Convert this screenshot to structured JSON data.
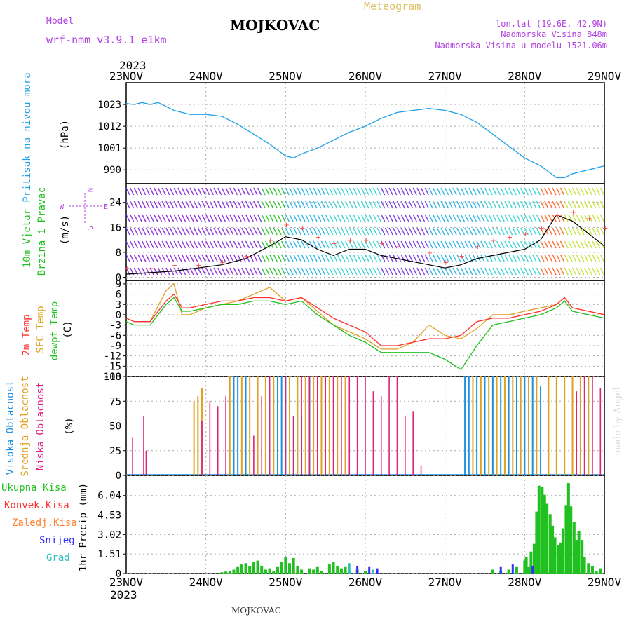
{
  "header": {
    "model_label": "Model",
    "model_name": "wrf-nmm_v3.9.1  e1km",
    "title": "MOJKOVAC",
    "subtitle": "Meteogram",
    "lonlat": "lon,lat (19.6E, 42.9N)",
    "alt_station": "Nadmorska Visina 848m",
    "alt_model": "Nadmorska Visina u modelu 1521.06m",
    "year_top": "2023",
    "year_bottom": "2023",
    "footer_title": "MOJKOVAC",
    "watermark": "made by Angel"
  },
  "x_axis": {
    "labels": [
      "23NOV",
      "24NOV",
      "25NOV",
      "26NOV",
      "27NOV",
      "28NOV",
      "29NOV"
    ]
  },
  "panel_labels": {
    "pressure": {
      "name": "Pritisak na nivou mora",
      "unit": "(hPa)"
    },
    "wind": {
      "name1": "10m Vjetar",
      "name2": "Brzina i Pravac",
      "unit": "(m/s)",
      "compass_n": "N",
      "compass_s": "S",
      "compass_e": "E",
      "compass_w": "W"
    },
    "temp": {
      "t2m": "2m Temp",
      "sfc": "SFC Temp",
      "dew": "dewpt Temp",
      "unit": "(C)"
    },
    "cloud": {
      "high": "Visoka Oblacnost",
      "mid": "Srednja Oblacnost",
      "low": "Niska Oblacnost",
      "unit": "(%)"
    },
    "precip": {
      "total": "Ukupna Kisa",
      "conv": "Konvek.Kisa",
      "frozen": "Zaledj.Kisa",
      "snow": "Snijeg",
      "grad": "Grad",
      "unit": "1hr Precip (mm)"
    }
  },
  "colors": {
    "pressure": "#1ea0e6",
    "wind_line": "#000000",
    "gust": "#ff4040",
    "t2m": "#ff3030",
    "sfc": "#e0a020",
    "dew": "#20c020",
    "cloud_high": "#1e90e0",
    "cloud_mid": "#e0a020",
    "cloud_low": "#e0207a",
    "precip_total": "#20c020",
    "precip_conv": "#ff3030",
    "precip_frozen": "#ff8030",
    "precip_snow": "#3030ff",
    "precip_grad": "#30c0c0",
    "model_text": "#b040e0",
    "subtitle_text": "#e0c060"
  },
  "chart_data": [
    {
      "type": "line",
      "name": "pressure",
      "yticks": [
        "1023",
        "1012",
        "1001",
        "990"
      ],
      "ylim": [
        983,
        1034
      ],
      "x": [
        0,
        0.1,
        0.2,
        0.3,
        0.4,
        0.5,
        0.6,
        0.7,
        0.8,
        0.9,
        1.0,
        1.2,
        1.4,
        1.6,
        1.8,
        2.0,
        2.1,
        2.2,
        2.4,
        2.6,
        2.8,
        3.0,
        3.2,
        3.4,
        3.6,
        3.8,
        4.0,
        4.2,
        4.4,
        4.6,
        4.8,
        5.0,
        5.2,
        5.4,
        5.5,
        5.6,
        5.8,
        6.0
      ],
      "values": [
        1023.5,
        1023,
        1024,
        1023,
        1024,
        1022,
        1020,
        1019,
        1018,
        1018,
        1018,
        1017,
        1013,
        1008,
        1003,
        997,
        996,
        998,
        1001,
        1005,
        1009,
        1012,
        1016,
        1019,
        1020,
        1021,
        1020,
        1018,
        1014,
        1008,
        1002,
        996,
        992,
        986,
        986,
        988,
        990,
        992
      ]
    },
    {
      "type": "line",
      "name": "wind",
      "yticks": [
        "24",
        "16",
        "8",
        "0"
      ],
      "ylim": [
        -1,
        30
      ],
      "x": [
        0,
        0.3,
        0.6,
        0.9,
        1.2,
        1.5,
        1.8,
        2.0,
        2.2,
        2.4,
        2.6,
        2.8,
        3.0,
        3.2,
        3.4,
        3.6,
        3.8,
        4.0,
        4.2,
        4.4,
        4.6,
        4.8,
        5.0,
        5.2,
        5.4,
        5.6,
        5.8,
        6.0
      ],
      "values": [
        1,
        1.5,
        2,
        3,
        4,
        6,
        10,
        13,
        12,
        9,
        7,
        9,
        9,
        7,
        6,
        5,
        4,
        3,
        4,
        6,
        7,
        8,
        9,
        12,
        20,
        18,
        14,
        10
      ],
      "gust": [
        3,
        3,
        4,
        4,
        5,
        7,
        12,
        17,
        16,
        13,
        11,
        12,
        12,
        11,
        10,
        9,
        8,
        5,
        7,
        10,
        12,
        13,
        14,
        16,
        20,
        21,
        19,
        16
      ]
    },
    {
      "type": "line",
      "name": "temperature",
      "yticks": [
        "9",
        "6",
        "3",
        "0",
        "-3",
        "-6",
        "-9",
        "-12",
        "-15",
        "-18"
      ],
      "ylim": [
        -18,
        10
      ],
      "x": [
        0,
        0.1,
        0.2,
        0.3,
        0.5,
        0.6,
        0.7,
        0.8,
        1.0,
        1.2,
        1.4,
        1.6,
        1.8,
        2.0,
        2.2,
        2.4,
        2.6,
        2.8,
        3.0,
        3.2,
        3.4,
        3.6,
        3.8,
        4.0,
        4.2,
        4.4,
        4.6,
        4.8,
        5.0,
        5.2,
        5.4,
        5.5,
        5.6,
        5.8,
        6.0
      ],
      "t2m": [
        -1,
        -2,
        -2,
        -2,
        4,
        6,
        2,
        2,
        3,
        4,
        4,
        5,
        5,
        4,
        5,
        2,
        -1,
        -3,
        -5,
        -9,
        -9,
        -8,
        -7,
        -7,
        -6,
        -2,
        -1,
        -1,
        0,
        1,
        3,
        5,
        2,
        1,
        0
      ],
      "sfc": [
        -1,
        -2,
        -2,
        -2,
        7,
        9,
        0,
        0,
        2,
        3,
        4,
        6,
        8,
        4,
        5,
        1,
        -3,
        -5,
        -7,
        -10,
        -10,
        -8,
        -3,
        -6,
        -7,
        -4,
        0,
        0,
        1,
        2,
        3,
        5,
        2,
        1,
        0
      ],
      "dew": [
        -2,
        -3,
        -3,
        -3,
        3,
        5,
        1,
        1,
        2,
        3,
        3,
        4,
        4,
        3,
        4,
        0,
        -3,
        -6,
        -8,
        -11,
        -11,
        -11,
        -11,
        -13,
        -16,
        -9,
        -3,
        -2,
        -1,
        0,
        2,
        4,
        1,
        0,
        -1
      ]
    },
    {
      "type": "bar",
      "name": "cloud",
      "yticks": [
        "100",
        "75",
        "50",
        "25",
        "0"
      ],
      "ylim": [
        0,
        100
      ],
      "high_bars": [
        [
          1.35,
          100
        ],
        [
          1.4,
          100
        ],
        [
          1.5,
          100
        ],
        [
          1.9,
          100
        ],
        [
          1.95,
          100
        ],
        [
          2.0,
          100
        ],
        [
          2.1,
          60
        ],
        [
          2.2,
          60
        ],
        [
          2.3,
          100
        ],
        [
          4.25,
          100
        ],
        [
          4.3,
          100
        ],
        [
          4.4,
          100
        ],
        [
          4.5,
          100
        ],
        [
          4.6,
          100
        ],
        [
          4.7,
          100
        ],
        [
          4.8,
          100
        ],
        [
          4.9,
          100
        ],
        [
          5.0,
          100
        ],
        [
          5.1,
          100
        ],
        [
          5.2,
          90
        ]
      ],
      "mid_bars": [
        [
          0.85,
          75
        ],
        [
          0.9,
          80
        ],
        [
          0.95,
          88
        ],
        [
          1.3,
          100
        ],
        [
          1.45,
          100
        ],
        [
          1.55,
          100
        ],
        [
          1.65,
          100
        ],
        [
          1.75,
          100
        ],
        [
          1.85,
          100
        ],
        [
          2.05,
          100
        ],
        [
          2.15,
          100
        ],
        [
          2.25,
          100
        ],
        [
          2.35,
          100
        ],
        [
          2.45,
          100
        ],
        [
          2.55,
          100
        ],
        [
          2.65,
          100
        ],
        [
          2.75,
          100
        ],
        [
          4.35,
          100
        ],
        [
          4.45,
          100
        ],
        [
          4.55,
          100
        ],
        [
          4.65,
          100
        ],
        [
          4.75,
          100
        ],
        [
          4.85,
          100
        ],
        [
          4.95,
          100
        ],
        [
          5.05,
          100
        ],
        [
          5.15,
          100
        ],
        [
          5.3,
          100
        ],
        [
          5.4,
          100
        ],
        [
          5.5,
          100
        ],
        [
          5.6,
          100
        ],
        [
          5.7,
          100
        ],
        [
          5.8,
          100
        ]
      ],
      "low_bars": [
        [
          0.08,
          38
        ],
        [
          0.22,
          60
        ],
        [
          0.25,
          25
        ],
        [
          0.95,
          55
        ],
        [
          1.05,
          75
        ],
        [
          1.15,
          70
        ],
        [
          1.25,
          80
        ],
        [
          1.6,
          40
        ],
        [
          1.7,
          80
        ],
        [
          1.8,
          100
        ],
        [
          2.0,
          100
        ],
        [
          2.1,
          60
        ],
        [
          2.2,
          100
        ],
        [
          2.3,
          100
        ],
        [
          2.4,
          100
        ],
        [
          2.5,
          100
        ],
        [
          2.6,
          100
        ],
        [
          2.7,
          100
        ],
        [
          2.8,
          100
        ],
        [
          2.9,
          100
        ],
        [
          3.0,
          100
        ],
        [
          3.1,
          85
        ],
        [
          3.2,
          80
        ],
        [
          3.3,
          100
        ],
        [
          3.4,
          100
        ],
        [
          3.5,
          60
        ],
        [
          3.6,
          65
        ],
        [
          3.7,
          10
        ],
        [
          5.65,
          85
        ],
        [
          5.75,
          100
        ],
        [
          5.85,
          100
        ],
        [
          5.95,
          88
        ]
      ]
    },
    {
      "type": "bar",
      "name": "precipitation",
      "yticks": [
        "6.04",
        "4.53",
        "3.02",
        "1.51",
        "0"
      ],
      "ylim": [
        0,
        7.6
      ],
      "total_bars": [
        [
          1.2,
          0.1
        ],
        [
          1.25,
          0.15
        ],
        [
          1.3,
          0.2
        ],
        [
          1.35,
          0.3
        ],
        [
          1.4,
          0.5
        ],
        [
          1.45,
          0.7
        ],
        [
          1.5,
          0.8
        ],
        [
          1.55,
          0.6
        ],
        [
          1.6,
          0.9
        ],
        [
          1.65,
          1.0
        ],
        [
          1.7,
          0.6
        ],
        [
          1.75,
          0.3
        ],
        [
          1.8,
          0.4
        ],
        [
          1.85,
          0.2
        ],
        [
          1.9,
          0.5
        ],
        [
          1.95,
          0.9
        ],
        [
          2.0,
          1.3
        ],
        [
          2.05,
          0.8
        ],
        [
          2.1,
          1.2
        ],
        [
          2.15,
          0.6
        ],
        [
          2.2,
          0.3
        ],
        [
          2.3,
          0.4
        ],
        [
          2.35,
          0.3
        ],
        [
          2.4,
          0.5
        ],
        [
          2.45,
          0.2
        ],
        [
          2.55,
          0.7
        ],
        [
          2.6,
          0.9
        ],
        [
          2.65,
          0.6
        ],
        [
          2.7,
          0.4
        ],
        [
          2.75,
          0.5
        ],
        [
          2.8,
          0.2
        ],
        [
          2.9,
          0.3
        ],
        [
          3.0,
          0.2
        ],
        [
          4.6,
          0.3
        ],
        [
          4.7,
          0.2
        ],
        [
          4.8,
          0.3
        ],
        [
          4.9,
          0.5
        ],
        [
          5.0,
          1.0
        ],
        [
          5.02,
          1.3
        ],
        [
          5.05,
          0.5
        ],
        [
          5.08,
          1.7
        ],
        [
          5.12,
          2.3
        ],
        [
          5.15,
          4.8
        ],
        [
          5.18,
          6.8
        ],
        [
          5.22,
          6.7
        ],
        [
          5.25,
          6.1
        ],
        [
          5.28,
          5.4
        ],
        [
          5.32,
          4.6
        ],
        [
          5.35,
          3.7
        ],
        [
          5.38,
          2.8
        ],
        [
          5.42,
          2.2
        ],
        [
          5.45,
          2.4
        ],
        [
          5.48,
          3.5
        ],
        [
          5.52,
          5.3
        ],
        [
          5.55,
          7.0
        ],
        [
          5.58,
          5.2
        ],
        [
          5.62,
          4.0
        ],
        [
          5.65,
          2.6
        ],
        [
          5.68,
          3.3
        ],
        [
          5.72,
          2.6
        ],
        [
          5.75,
          1.3
        ],
        [
          5.8,
          0.8
        ],
        [
          5.85,
          0.6
        ],
        [
          5.9,
          0.2
        ],
        [
          5.95,
          0.4
        ]
      ],
      "snow_bars": [
        [
          2.9,
          0.6
        ],
        [
          3.05,
          0.5
        ],
        [
          3.15,
          0.4
        ],
        [
          4.7,
          0.5
        ],
        [
          4.85,
          0.7
        ],
        [
          5.1,
          0.6
        ]
      ],
      "grad_bars": [
        [
          2.8,
          0.8
        ],
        [
          3.1,
          0.3
        ]
      ]
    }
  ]
}
